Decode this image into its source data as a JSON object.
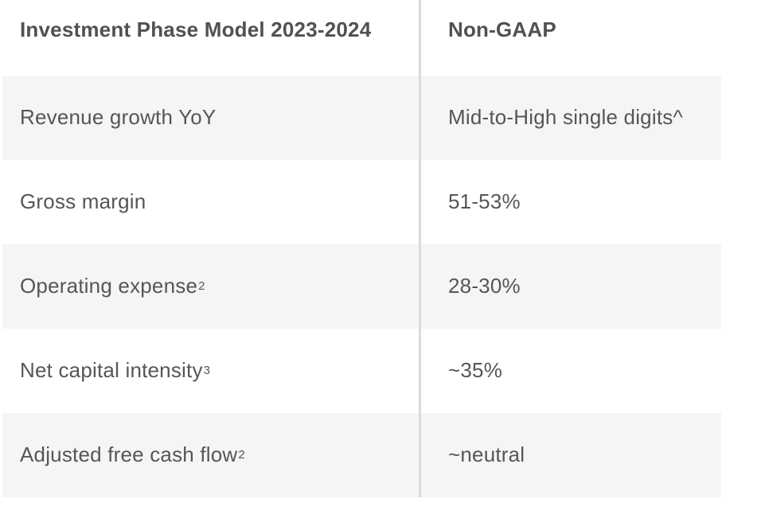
{
  "table": {
    "title": "Investment Phase Model 2023-2024",
    "header": {
      "col1": "Investment Phase Model 2023-2024",
      "col2": "Non-GAAP"
    },
    "rows": [
      {
        "label": "Revenue growth YoY",
        "footnote": "",
        "value": "Mid-to-High single digits^"
      },
      {
        "label": "Gross margin",
        "footnote": "",
        "value": "51-53%"
      },
      {
        "label": "Operating expense",
        "footnote": "2",
        "value": "28-30%"
      },
      {
        "label": "Net capital intensity",
        "footnote": "3",
        "value": "~35%"
      },
      {
        "label": "Adjusted free cash flow",
        "footnote": "2",
        "value": "~neutral"
      }
    ],
    "colors": {
      "shaded_row_bg": "#f5f5f5",
      "divider": "#d9dadb",
      "text": "#54565a"
    }
  }
}
